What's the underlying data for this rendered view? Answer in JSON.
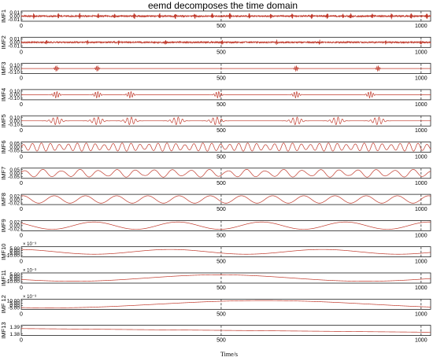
{
  "chart_data": {
    "type": "line",
    "title": "eemd decomposes the time domain",
    "xlabel": "Time/s",
    "xlim": [
      0,
      1024
    ],
    "xticks": [
      0,
      500,
      1000
    ],
    "dashed_x": [
      500,
      1000
    ],
    "line_color": "#c0392b",
    "panels": [
      {
        "name": "IMF1",
        "ylim": [
          -0.02,
          0.02
        ],
        "yticks": [
          "0.01",
          "0.00",
          "-0.01"
        ],
        "multiplier": "",
        "shape": "noise",
        "amp": 0.7,
        "period": 3,
        "phase": 0,
        "slope": 0,
        "bursts": [
          65,
          190,
          300,
          395,
          480,
          580,
          710,
          790,
          890,
          980,
          1070,
          1170,
          1280,
          1390,
          1490,
          1570,
          1650,
          1690,
          1800,
          1900,
          2000,
          2080
        ]
      },
      {
        "name": "IMF2",
        "ylim": [
          -0.02,
          0.02
        ],
        "yticks": [
          "0.01",
          "0.00",
          "-0.01"
        ],
        "multiplier": "",
        "shape": "noise",
        "amp": 0.55,
        "period": 5,
        "phase": 1,
        "slope": 0,
        "bursts": [
          130,
          340,
          500,
          740,
          1030,
          1310,
          1530,
          1870,
          2050
        ]
      },
      {
        "name": "IMF3",
        "ylim": [
          -0.15,
          0.15
        ],
        "yticks": [
          "0.10",
          "0.00",
          "-0.10"
        ],
        "multiplier": "",
        "shape": "bursts",
        "amp": 0.6,
        "period": 7,
        "phase": 0,
        "slope": 0,
        "bursts": [
          180,
          390,
          1410,
          1830
        ]
      },
      {
        "name": "IMF4",
        "ylim": [
          -0.15,
          0.15
        ],
        "yticks": [
          "0.10",
          "0.00",
          "-0.10"
        ],
        "multiplier": "",
        "shape": "bursts",
        "amp": 0.75,
        "period": 13,
        "phase": 0,
        "slope": 0,
        "bursts": [
          180,
          390,
          560,
          1010,
          1410,
          1790
        ]
      },
      {
        "name": "IMF5",
        "ylim": [
          -0.15,
          0.15
        ],
        "yticks": [
          "0.10",
          "0.00",
          "-0.10"
        ],
        "multiplier": "",
        "shape": "bursts",
        "amp": 0.9,
        "period": 22,
        "phase": 0,
        "slope": 0,
        "bursts": [
          180,
          390,
          560,
          800,
          1000,
          1410,
          1620,
          1830
        ]
      },
      {
        "name": "IMF6",
        "ylim": [
          -0.07,
          0.07
        ],
        "yticks": [
          "0.05",
          "0.00",
          "-0.05"
        ],
        "multiplier": "",
        "shape": "modulated",
        "amp": 0.95,
        "period": 46,
        "phase": 0,
        "slope": 0,
        "bursts": []
      },
      {
        "name": "IMF7",
        "ylim": [
          -0.07,
          0.07
        ],
        "yticks": [
          "0.05",
          "0.00",
          "-0.05"
        ],
        "multiplier": "",
        "shape": "modulated",
        "amp": 0.9,
        "period": 95,
        "phase": 0.5,
        "slope": 0,
        "bursts": []
      },
      {
        "name": "IMF8",
        "ylim": [
          -0.03,
          0.03
        ],
        "yticks": [
          "0.02",
          "0.00",
          "-0.02"
        ],
        "multiplier": "",
        "shape": "sine",
        "amp": 0.85,
        "period": 160,
        "phase": 1.2,
        "slope": 0,
        "bursts": []
      },
      {
        "name": "IMF9",
        "ylim": [
          -0.03,
          0.03
        ],
        "yticks": [
          "0.02",
          "0.00",
          "-0.02"
        ],
        "multiplier": "",
        "shape": "sine",
        "amp": 0.85,
        "period": 430,
        "phase": 2.4,
        "slope": 0,
        "bursts": []
      },
      {
        "name": "IMF10",
        "ylim": [
          -15,
          8
        ],
        "yticks": [
          "5.00",
          "0.00",
          "-5.00",
          "-10.00"
        ],
        "multiplier": "× 10⁻³",
        "shape": "sine",
        "amp": 0.55,
        "period": 780,
        "phase": 1.7,
        "slope": 0,
        "bursts": []
      },
      {
        "name": "IMF11",
        "ylim": [
          -15,
          8
        ],
        "yticks": [
          "5.00",
          "0.00",
          "-5.00",
          "-10.00"
        ],
        "multiplier": "× 10⁻³",
        "shape": "sine",
        "amp": 0.75,
        "period": 1500,
        "phase": 3.6,
        "slope": 0,
        "bursts": []
      },
      {
        "name": "IMF 12",
        "ylim": [
          -8,
          13
        ],
        "yticks": [
          "10.00",
          "5.00",
          "0.00",
          "-5.00"
        ],
        "multiplier": "× 10⁻³",
        "shape": "sine",
        "amp": 0.85,
        "period": 2200,
        "phase": 4.3,
        "slope": 0,
        "bursts": []
      },
      {
        "name": "IMF13",
        "ylim": [
          1.376,
          1.396
        ],
        "yticks": [
          "1.39",
          "1.38"
        ],
        "multiplier": "",
        "shape": "trend",
        "amp": 0,
        "period": 1,
        "phase": 0,
        "slope": -0.85,
        "bursts": []
      }
    ]
  }
}
